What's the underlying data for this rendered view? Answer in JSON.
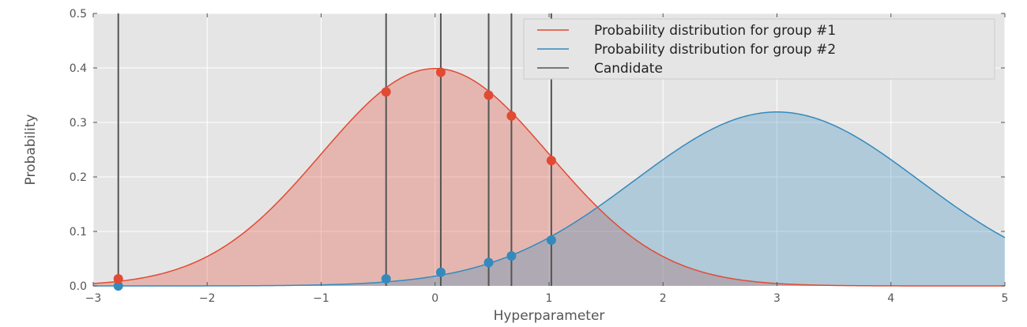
{
  "chart_data": {
    "type": "line",
    "title": "",
    "xlabel": "Hyperparameter",
    "ylabel": "Probability",
    "xlim": [
      -3,
      5
    ],
    "ylim": [
      0,
      0.5
    ],
    "xticks": [
      -3,
      -2,
      -1,
      0,
      1,
      2,
      3,
      4,
      5
    ],
    "xtick_labels": [
      "−3",
      "−2",
      "−1",
      "0",
      "1",
      "2",
      "3",
      "4",
      "5"
    ],
    "yticks": [
      0.0,
      0.1,
      0.2,
      0.3,
      0.4,
      0.5
    ],
    "ytick_labels": [
      "0.0",
      "0.1",
      "0.2",
      "0.3",
      "0.4",
      "0.5"
    ],
    "grid": true,
    "legend_position": "top-right",
    "series": [
      {
        "name": "Probability distribution for group #1",
        "kind": "normal",
        "mean": 0.0,
        "std": 1.0,
        "color": "#e24a33",
        "fill": true
      },
      {
        "name": "Probability distribution for group #2",
        "kind": "normal",
        "mean": 3.0,
        "std": 1.25,
        "color": "#348abd",
        "fill": true
      },
      {
        "name": "Candidate",
        "kind": "vertical_lines",
        "color": "#555555",
        "x": [
          -2.78,
          -0.43,
          0.05,
          0.47,
          0.67,
          1.02
        ]
      }
    ],
    "candidate_points": {
      "x": [
        -2.78,
        -0.43,
        0.05,
        0.47,
        0.67,
        1.02
      ],
      "group1_y": [
        0.013,
        0.356,
        0.392,
        0.35,
        0.312,
        0.23
      ],
      "group2_y": [
        0.0,
        0.013,
        0.025,
        0.043,
        0.055,
        0.084
      ]
    },
    "background_color": "#e5e5e5",
    "grid_color": "#ffffff"
  }
}
